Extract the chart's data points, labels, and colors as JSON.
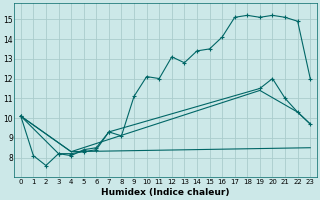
{
  "xlabel": "Humidex (Indice chaleur)",
  "background_color": "#cce8e8",
  "grid_color": "#aacccc",
  "line_color": "#006666",
  "xlim": [
    -0.5,
    23.5
  ],
  "ylim": [
    7.0,
    15.8
  ],
  "yticks": [
    8,
    9,
    10,
    11,
    12,
    13,
    14,
    15
  ],
  "xticks": [
    0,
    1,
    2,
    3,
    4,
    5,
    6,
    7,
    8,
    9,
    10,
    11,
    12,
    13,
    14,
    15,
    16,
    17,
    18,
    19,
    20,
    21,
    22,
    23
  ],
  "line1_x": [
    0,
    1,
    2,
    3,
    4,
    5,
    6,
    7,
    8,
    9,
    10,
    11,
    12,
    13,
    14,
    15,
    16,
    17,
    18,
    19,
    20,
    21,
    22,
    23
  ],
  "line1_y": [
    10.1,
    8.1,
    7.6,
    8.2,
    8.1,
    8.4,
    8.5,
    9.3,
    9.1,
    11.1,
    12.1,
    12.0,
    13.1,
    12.8,
    13.4,
    13.5,
    14.1,
    15.1,
    15.2,
    15.1,
    15.2,
    15.1,
    14.9,
    12.0
  ],
  "line2_x": [
    0,
    3,
    4,
    5,
    6,
    7,
    19,
    20,
    21,
    22,
    23
  ],
  "line2_y": [
    10.1,
    8.2,
    8.2,
    8.3,
    8.4,
    9.3,
    11.5,
    12.0,
    11.0,
    10.3,
    9.7
  ],
  "line3_x": [
    0,
    4,
    23
  ],
  "line3_y": [
    10.1,
    8.3,
    8.5
  ],
  "line4_x": [
    0,
    4,
    19,
    22,
    23
  ],
  "line4_y": [
    10.1,
    8.3,
    11.4,
    10.3,
    9.7
  ]
}
